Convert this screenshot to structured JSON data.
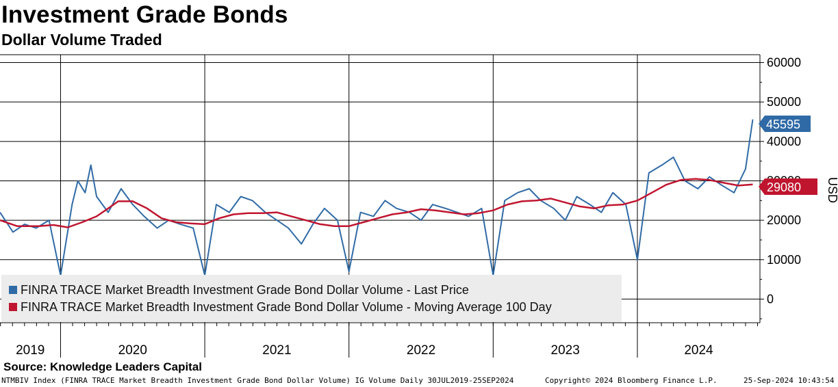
{
  "chart_data": {
    "type": "line",
    "title": "Investment Grade Bonds",
    "subtitle": "Dollar Volume Traded",
    "ylabel": "USD",
    "ylim": [
      -6000,
      62000
    ],
    "yticks": [
      0,
      10000,
      20000,
      30000,
      40000,
      50000,
      60000
    ],
    "x_categories": [
      "2019",
      "2020",
      "2021",
      "2022",
      "2023",
      "2024"
    ],
    "xlim": [
      2019.58,
      2024.85
    ],
    "year_bounds": [
      2020.0,
      2021.0,
      2022.0,
      2023.0,
      2024.0
    ],
    "grid": true,
    "legend_position": "bottom-left",
    "series": [
      {
        "name": "FINRA TRACE Market Breadth Investment Grade Bond Dollar Volume - Last Price",
        "color": "#2f6aa6",
        "last_value": "45595",
        "x": [
          2019.58,
          2019.67,
          2019.75,
          2019.83,
          2019.92,
          2020.0,
          2020.08,
          2020.12,
          2020.17,
          2020.21,
          2020.25,
          2020.33,
          2020.42,
          2020.5,
          2020.58,
          2020.67,
          2020.75,
          2020.83,
          2020.92,
          2021.0,
          2021.08,
          2021.17,
          2021.25,
          2021.33,
          2021.42,
          2021.5,
          2021.58,
          2021.67,
          2021.75,
          2021.83,
          2021.92,
          2022.0,
          2022.08,
          2022.17,
          2022.25,
          2022.33,
          2022.42,
          2022.5,
          2022.58,
          2022.67,
          2022.75,
          2022.83,
          2022.92,
          2023.0,
          2023.08,
          2023.17,
          2023.25,
          2023.33,
          2023.42,
          2023.5,
          2023.58,
          2023.67,
          2023.75,
          2023.83,
          2023.92,
          2024.0,
          2024.08,
          2024.17,
          2024.25,
          2024.33,
          2024.42,
          2024.5,
          2024.58,
          2024.67,
          2024.75,
          2024.8
        ],
        "y": [
          22000,
          17000,
          19000,
          18000,
          20000,
          6000,
          24000,
          30000,
          27000,
          34000,
          26000,
          22000,
          28000,
          24000,
          21000,
          18000,
          20000,
          19000,
          18000,
          6000,
          24000,
          22000,
          26000,
          25000,
          22000,
          20000,
          18000,
          14000,
          19000,
          23000,
          20000,
          7000,
          22000,
          21000,
          25000,
          23000,
          22000,
          20000,
          24000,
          23000,
          22000,
          21000,
          23000,
          6000,
          25000,
          27000,
          28000,
          25000,
          23000,
          20000,
          26000,
          24000,
          22000,
          27000,
          24000,
          10000,
          32000,
          34000,
          36000,
          30000,
          28000,
          31000,
          29000,
          27000,
          33000,
          45595
        ]
      },
      {
        "name": "FINRA TRACE Market Breadth Investment Grade Bond Dollar Volume - Moving Average 100 Day",
        "color": "#c0152f",
        "last_value": "29080",
        "x": [
          2019.58,
          2019.7,
          2019.85,
          2019.95,
          2020.05,
          2020.15,
          2020.25,
          2020.33,
          2020.4,
          2020.5,
          2020.6,
          2020.7,
          2020.8,
          2020.9,
          2021.0,
          2021.1,
          2021.2,
          2021.3,
          2021.4,
          2021.5,
          2021.6,
          2021.7,
          2021.8,
          2021.9,
          2022.0,
          2022.1,
          2022.2,
          2022.3,
          2022.4,
          2022.5,
          2022.6,
          2022.7,
          2022.8,
          2022.9,
          2023.0,
          2023.1,
          2023.2,
          2023.3,
          2023.4,
          2023.5,
          2023.6,
          2023.7,
          2023.8,
          2023.9,
          2024.0,
          2024.1,
          2024.2,
          2024.3,
          2024.4,
          2024.5,
          2024.6,
          2024.7,
          2024.8
        ],
        "y": [
          20000,
          18500,
          18500,
          18800,
          18200,
          19500,
          21000,
          23000,
          24800,
          24800,
          23000,
          20500,
          19500,
          19200,
          19000,
          20500,
          21500,
          21800,
          21800,
          22000,
          21000,
          20000,
          19000,
          18500,
          18500,
          19500,
          20500,
          21500,
          22000,
          22800,
          22500,
          22000,
          21500,
          21800,
          22500,
          24000,
          24800,
          25000,
          25500,
          24500,
          23500,
          23000,
          23800,
          24000,
          25000,
          27000,
          29000,
          30200,
          30500,
          30200,
          29500,
          28800,
          29080
        ]
      }
    ]
  },
  "source": "Source: Knowledge Leaders Capital",
  "footer": {
    "left": "NTMBIV Index (FINRA TRACE Market Breadth Investment Grade Bond Dollar Volume) IG Volume  Daily 30JUL2019-25SEP2024",
    "middle": "Copyright© 2024 Bloomberg Finance L.P.",
    "right": "25-Sep-2024 10:43:54"
  }
}
